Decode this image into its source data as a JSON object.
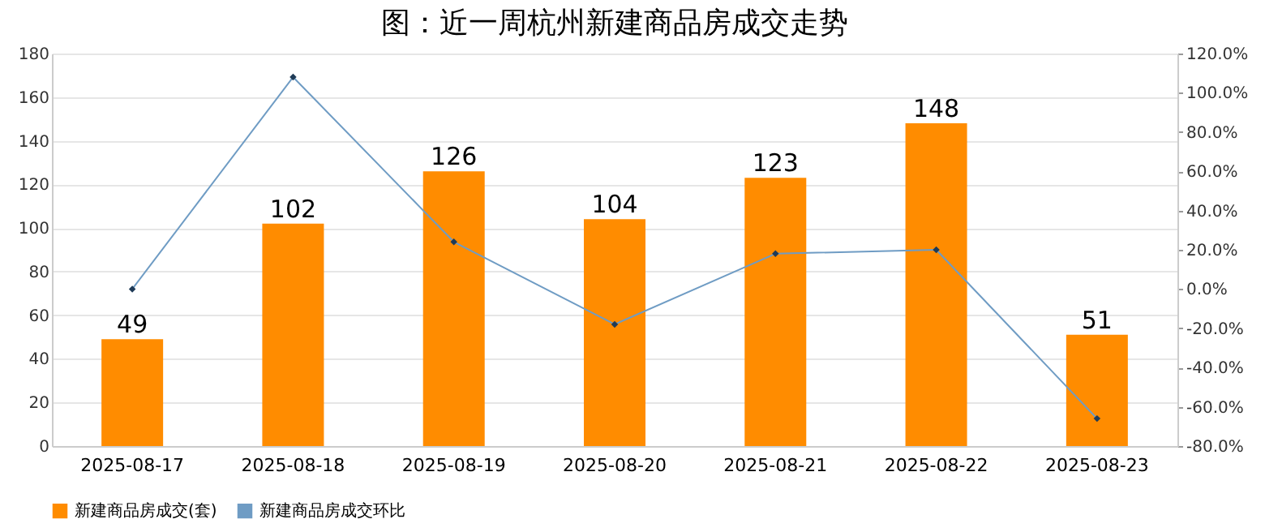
{
  "chart_data": {
    "type": "bar",
    "title": "图：近一周杭州新建商品房成交走势",
    "categories": [
      "2025-08-17",
      "2025-08-18",
      "2025-08-19",
      "2025-08-20",
      "2025-08-21",
      "2025-08-22",
      "2025-08-23"
    ],
    "series": [
      {
        "name": "新建商品房成交(套)",
        "color": "#ff8c00",
        "values": [
          49,
          102,
          126,
          104,
          123,
          148,
          51
        ],
        "value_labels": [
          "49",
          "102",
          "126",
          "104",
          "123",
          "148",
          "51"
        ]
      },
      {
        "name": "新建商品房成交环比",
        "type": "line",
        "axis": "y2",
        "color": "#6f9cc4",
        "marker": "diamond",
        "values": [
          0,
          108,
          24,
          -18,
          18,
          20,
          -66
        ]
      }
    ],
    "ylim": [
      0,
      180
    ],
    "yticks": [
      0,
      20,
      40,
      60,
      80,
      100,
      120,
      140,
      160,
      180
    ],
    "y2lim": [
      -80,
      120
    ],
    "y2ticks": [
      {
        "value": -80,
        "label": "-80.0%"
      },
      {
        "value": -60,
        "label": "-60.0%"
      },
      {
        "value": -40,
        "label": "-40.0%"
      },
      {
        "value": -20,
        "label": "-20.0%"
      },
      {
        "value": 0,
        "label": "0.0%"
      },
      {
        "value": 20,
        "label": "20.0%"
      },
      {
        "value": 40,
        "label": "40.0%"
      },
      {
        "value": 60,
        "label": "60.0%"
      },
      {
        "value": 80,
        "label": "80.0%"
      },
      {
        "value": 100,
        "label": "100.0%"
      },
      {
        "value": 120,
        "label": "120.0%"
      }
    ],
    "grid": "y",
    "legend": "bottom"
  }
}
